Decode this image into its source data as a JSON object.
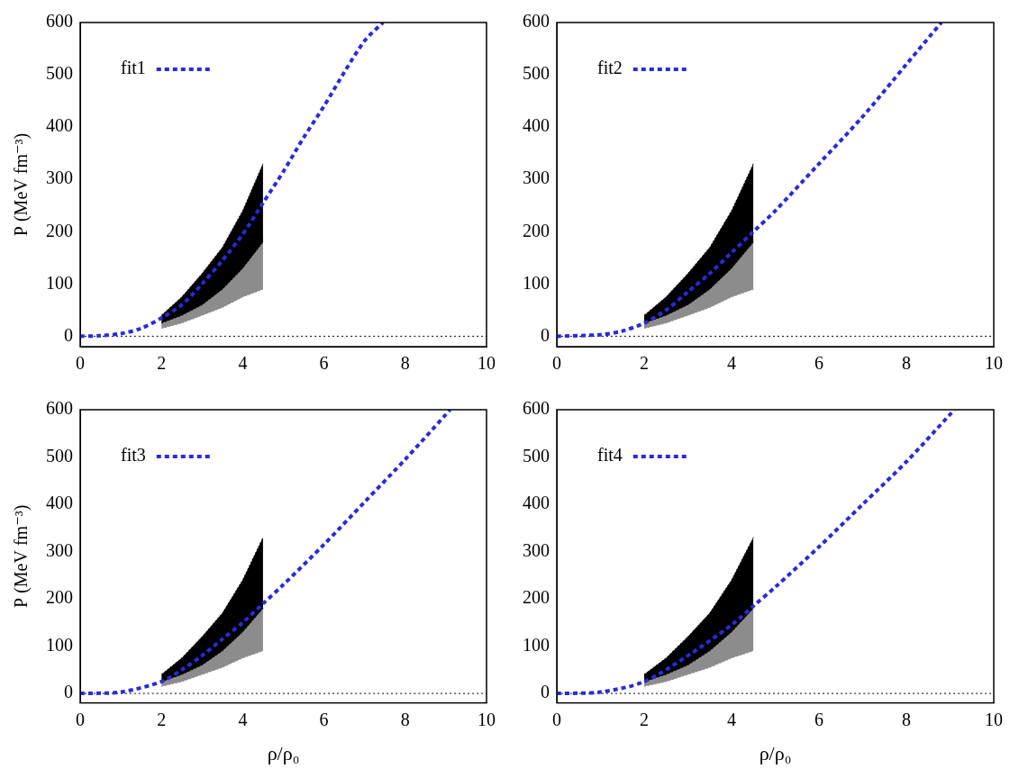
{
  "chart_data": [
    {
      "type": "line",
      "ylabel": "P (MeV fm⁻³)",
      "legend": "upper left",
      "grid": false,
      "xlim": [
        0,
        10
      ],
      "xticks": [
        0,
        2,
        4,
        6,
        8,
        10
      ],
      "ylim": [
        -20,
        600
      ],
      "yticks": [
        0,
        100,
        200,
        300,
        400,
        500,
        600
      ],
      "series": [
        {
          "type": "band",
          "color": "#8c8c8c",
          "x": [
            2,
            2.5,
            3,
            3.5,
            4,
            4.5
          ],
          "lower": [
            15,
            25,
            40,
            55,
            75,
            90
          ],
          "upper": [
            30,
            55,
            85,
            120,
            160,
            190
          ]
        },
        {
          "type": "band",
          "color": "#000000",
          "x": [
            2,
            2.5,
            3,
            3.5,
            4,
            4.5
          ],
          "lower": [
            25,
            40,
            60,
            90,
            130,
            180
          ],
          "upper": [
            40,
            75,
            120,
            170,
            240,
            330
          ]
        },
        {
          "type": "line",
          "color": "#000000",
          "line_style": "dotted",
          "marker": "none",
          "x": [
            0,
            10
          ],
          "values": [
            0,
            0
          ]
        },
        {
          "name": "fit1",
          "type": "line",
          "color": "#2a2ad8",
          "line_style": "dashed",
          "marker": "none",
          "x": [
            0,
            0.5,
            1,
            1.5,
            2,
            2.5,
            3,
            3.5,
            4,
            4.5,
            5,
            5.5,
            6,
            6.5,
            7,
            7.45
          ],
          "values": [
            0,
            1,
            5,
            15,
            35,
            60,
            100,
            145,
            195,
            255,
            315,
            380,
            440,
            505,
            565,
            600
          ]
        }
      ]
    },
    {
      "type": "line",
      "legend": "upper left",
      "grid": false,
      "xlim": [
        0,
        10
      ],
      "xticks": [
        0,
        2,
        4,
        6,
        8,
        10
      ],
      "ylim": [
        -20,
        600
      ],
      "yticks": [
        0,
        100,
        200,
        300,
        400,
        500,
        600
      ],
      "series": [
        {
          "type": "band",
          "color": "#8c8c8c",
          "x": [
            2,
            2.5,
            3,
            3.5,
            4,
            4.5
          ],
          "lower": [
            15,
            25,
            40,
            55,
            75,
            90
          ],
          "upper": [
            30,
            55,
            85,
            120,
            160,
            190
          ]
        },
        {
          "type": "band",
          "color": "#000000",
          "x": [
            2,
            2.5,
            3,
            3.5,
            4,
            4.5
          ],
          "lower": [
            25,
            40,
            60,
            90,
            130,
            180
          ],
          "upper": [
            40,
            75,
            120,
            170,
            240,
            330
          ]
        },
        {
          "type": "line",
          "color": "#000000",
          "line_style": "dotted",
          "marker": "none",
          "x": [
            0,
            10
          ],
          "values": [
            0,
            0
          ]
        },
        {
          "name": "fit2",
          "type": "line",
          "color": "#2a2ad8",
          "line_style": "dashed",
          "marker": "none",
          "x": [
            0,
            1,
            1.5,
            2,
            2.5,
            3,
            3.5,
            4,
            4.5,
            5,
            6,
            7,
            8,
            8.8
          ],
          "values": [
            0,
            3,
            10,
            25,
            50,
            85,
            120,
            160,
            200,
            240,
            330,
            420,
            520,
            600
          ]
        }
      ]
    },
    {
      "type": "line",
      "xlabel": "ρ/ρ₀",
      "ylabel": "P (MeV fm⁻³)",
      "legend": "upper left",
      "grid": false,
      "xlim": [
        0,
        10
      ],
      "xticks": [
        0,
        2,
        4,
        6,
        8,
        10
      ],
      "ylim": [
        -20,
        600
      ],
      "yticks": [
        0,
        100,
        200,
        300,
        400,
        500,
        600
      ],
      "series": [
        {
          "type": "band",
          "color": "#8c8c8c",
          "x": [
            2,
            2.5,
            3,
            3.5,
            4,
            4.5
          ],
          "lower": [
            15,
            25,
            40,
            55,
            75,
            90
          ],
          "upper": [
            30,
            55,
            85,
            120,
            160,
            190
          ]
        },
        {
          "type": "band",
          "color": "#000000",
          "x": [
            2,
            2.5,
            3,
            3.5,
            4,
            4.5
          ],
          "lower": [
            25,
            40,
            60,
            90,
            130,
            180
          ],
          "upper": [
            40,
            75,
            120,
            170,
            240,
            330
          ]
        },
        {
          "type": "line",
          "color": "#000000",
          "line_style": "dotted",
          "marker": "none",
          "x": [
            0,
            10
          ],
          "values": [
            0,
            0
          ]
        },
        {
          "name": "fit3",
          "type": "line",
          "color": "#2a2ad8",
          "line_style": "dashed",
          "marker": "none",
          "x": [
            0,
            1,
            2,
            2.5,
            3,
            3.5,
            4,
            4.5,
            5,
            6,
            7,
            8,
            9,
            9.1
          ],
          "values": [
            0,
            3,
            25,
            50,
            80,
            115,
            150,
            190,
            230,
            315,
            405,
            495,
            590,
            600
          ]
        }
      ]
    },
    {
      "type": "line",
      "xlabel": "ρ/ρ₀",
      "legend": "upper left",
      "grid": false,
      "xlim": [
        0,
        10
      ],
      "xticks": [
        0,
        2,
        4,
        6,
        8,
        10
      ],
      "ylim": [
        -20,
        600
      ],
      "yticks": [
        0,
        100,
        200,
        300,
        400,
        500,
        600
      ],
      "series": [
        {
          "type": "band",
          "color": "#8c8c8c",
          "x": [
            2,
            2.5,
            3,
            3.5,
            4,
            4.5
          ],
          "lower": [
            15,
            25,
            40,
            55,
            75,
            90
          ],
          "upper": [
            30,
            55,
            85,
            120,
            160,
            190
          ]
        },
        {
          "type": "band",
          "color": "#000000",
          "x": [
            2,
            2.5,
            3,
            3.5,
            4,
            4.5
          ],
          "lower": [
            25,
            40,
            60,
            90,
            130,
            180
          ],
          "upper": [
            40,
            75,
            120,
            170,
            240,
            330
          ]
        },
        {
          "type": "line",
          "color": "#000000",
          "line_style": "dotted",
          "marker": "none",
          "x": [
            0,
            10
          ],
          "values": [
            0,
            0
          ]
        },
        {
          "name": "fit4",
          "type": "line",
          "color": "#2a2ad8",
          "line_style": "dashed",
          "marker": "none",
          "x": [
            0,
            1,
            2,
            3,
            4,
            4.5,
            5,
            6,
            7,
            8,
            9,
            9.1
          ],
          "values": [
            0,
            3,
            25,
            80,
            145,
            185,
            225,
            310,
            400,
            490,
            590,
            600
          ]
        }
      ]
    }
  ]
}
